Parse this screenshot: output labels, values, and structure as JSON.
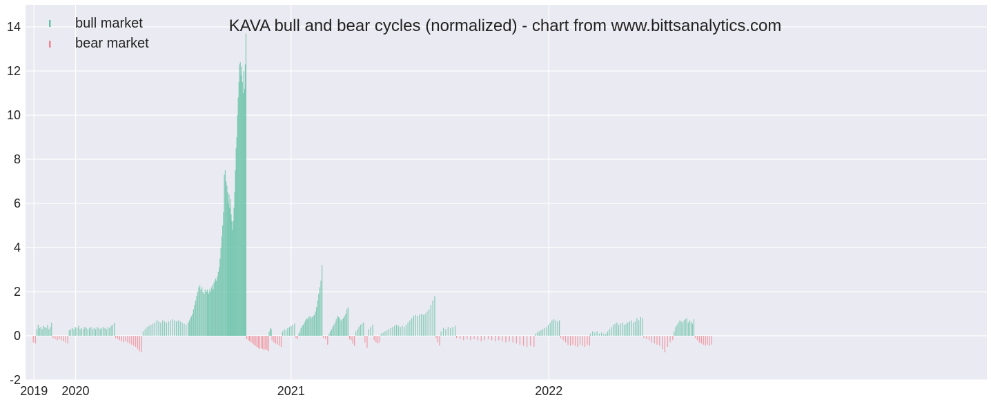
{
  "chart_data": {
    "type": "bar",
    "title": "KAVA bull and bear cycles (normalized)  - chart from www.bittsanalytics.com",
    "xlabel": "",
    "ylabel": "",
    "ylim": [
      -2,
      15
    ],
    "yticks": [
      -2,
      0,
      2,
      4,
      6,
      8,
      10,
      12,
      14
    ],
    "xlim": [
      "2018-12-20",
      "2022-09-15"
    ],
    "xticks": [
      {
        "label": "2019",
        "date": "2019-01-01"
      },
      {
        "label": "2020",
        "date": "2019-03-01"
      },
      {
        "label": "2021",
        "date": "2020-01-01"
      },
      {
        "label": "2022",
        "date": "2021-01-01"
      }
    ],
    "grid": true,
    "legend_position": "top-left",
    "colors": {
      "bull": "#66c2a5",
      "bear": "#f4828c",
      "background": "#eaeaf2",
      "grid": "#ffffff"
    },
    "series": [
      {
        "name": "bull market",
        "key": "bull",
        "segments": [
          {
            "start": "2019-01-05",
            "end": "2019-01-26",
            "values": [
              0.3,
              0.5,
              0.35,
              0.4,
              0.3,
              0.45,
              0.4,
              0.35,
              0.5,
              0.3,
              0.4,
              0.6
            ]
          },
          {
            "start": "2019-02-20",
            "end": "2019-04-25",
            "values": [
              0.25,
              0.3,
              0.35,
              0.3,
              0.4,
              0.35,
              0.45,
              0.3,
              0.35,
              0.3,
              0.4,
              0.35,
              0.3,
              0.35,
              0.4,
              0.3,
              0.35,
              0.3,
              0.4,
              0.35,
              0.3,
              0.35,
              0.4,
              0.35,
              0.3,
              0.4,
              0.35,
              0.45,
              0.5,
              0.6
            ]
          },
          {
            "start": "2019-06-05",
            "end": "2019-08-05",
            "values": [
              0.2,
              0.3,
              0.4,
              0.45,
              0.5,
              0.55,
              0.6,
              0.7,
              0.65,
              0.6,
              0.7,
              0.65,
              0.6,
              0.65,
              0.7,
              0.75,
              0.7,
              0.65,
              0.7,
              0.65,
              0.6,
              0.55,
              0.5
            ]
          },
          {
            "start": "2019-08-08",
            "end": "2019-09-04",
            "values": [
              0.6,
              0.7,
              0.8,
              0.9,
              1.0,
              1.2,
              1.4,
              1.6,
              1.8,
              2.0,
              2.2,
              2.3,
              2.1,
              2.2,
              2.0,
              1.9,
              2.1,
              2.0,
              2.1
            ]
          },
          {
            "start": "2019-09-05",
            "end": "2019-10-02",
            "values": [
              2.0,
              1.9,
              2.1,
              2.0,
              2.2,
              2.3,
              2.1,
              2.4,
              2.5,
              2.6,
              2.5,
              2.7,
              2.9,
              3.1,
              3.5,
              4.0,
              4.5,
              5.0,
              5.6,
              7.3,
              7.5,
              7.0,
              6.8
            ]
          },
          {
            "start": "2019-10-03",
            "end": "2019-10-20",
            "values": [
              6.5,
              6.0,
              6.4,
              5.8,
              6.2,
              5.5,
              5.2,
              4.8,
              5.2,
              5.8,
              6.5,
              7.5,
              8.5,
              9.0,
              10.0,
              10.8,
              11.5,
              12.3
            ]
          },
          {
            "start": "2019-10-21",
            "end": "2019-10-29",
            "values": [
              12.4,
              11.8,
              12.2,
              11.5,
              11.0,
              12.0,
              11.2,
              12.3,
              13.7
            ]
          },
          {
            "start": "2019-12-01",
            "end": "2019-12-04",
            "values": [
              0.2,
              0.35,
              0.3
            ]
          },
          {
            "start": "2019-12-20",
            "end": "2020-01-06",
            "values": [
              0.2,
              0.3,
              0.25,
              0.35,
              0.4,
              0.45,
              0.5,
              0.55
            ]
          },
          {
            "start": "2020-01-12",
            "end": "2020-02-14",
            "values": [
              0.1,
              0.2,
              0.35,
              0.45,
              0.5,
              0.6,
              0.7,
              0.8,
              0.75,
              0.85,
              0.9,
              0.8,
              0.85,
              0.9,
              0.95,
              1.1,
              1.3,
              1.6,
              1.9,
              2.2,
              2.5,
              3.2
            ]
          },
          {
            "start": "2020-02-24",
            "end": "2020-03-22",
            "values": [
              0.1,
              0.2,
              0.3,
              0.4,
              0.5,
              0.6,
              0.75,
              0.9,
              0.85,
              0.8,
              0.7,
              0.75,
              0.8,
              0.9,
              1.0,
              1.2,
              1.3
            ]
          },
          {
            "start": "2020-04-02",
            "end": "2020-04-13",
            "values": [
              0.2,
              0.3,
              0.4,
              0.5,
              0.55,
              0.6
            ]
          },
          {
            "start": "2020-04-20",
            "end": "2020-04-26",
            "values": [
              0.3,
              0.4,
              0.5
            ]
          },
          {
            "start": "2020-05-08",
            "end": "2020-07-23",
            "values": [
              0.1,
              0.15,
              0.2,
              0.25,
              0.3,
              0.35,
              0.4,
              0.45,
              0.5,
              0.45,
              0.4,
              0.45,
              0.4,
              0.5,
              0.6,
              0.7,
              0.8,
              0.9,
              0.95,
              0.9,
              0.95,
              1.0,
              0.95,
              1.0,
              1.1,
              1.2,
              1.4,
              1.6,
              1.8
            ]
          },
          {
            "start": "2020-08-01",
            "end": "2020-08-21",
            "values": [
              0.2,
              0.35,
              0.3,
              0.4,
              0.35,
              0.4,
              0.45
            ]
          },
          {
            "start": "2020-12-13",
            "end": "2021-01-16",
            "values": [
              0.1,
              0.15,
              0.2,
              0.25,
              0.3,
              0.35,
              0.4,
              0.5,
              0.6,
              0.7,
              0.75,
              0.7,
              0.65,
              0.7
            ]
          },
          {
            "start": "2021-03-01",
            "end": "2021-03-20",
            "values": [
              0.1,
              0.2,
              0.15,
              0.2,
              0.1,
              0.15,
              0.1
            ]
          },
          {
            "start": "2021-03-23",
            "end": "2021-05-14",
            "values": [
              0.1,
              0.2,
              0.3,
              0.4,
              0.5,
              0.55,
              0.6,
              0.5,
              0.55,
              0.6,
              0.5,
              0.55,
              0.6,
              0.65,
              0.7,
              0.6,
              0.65,
              0.8,
              0.7,
              0.85,
              0.8
            ]
          },
          {
            "start": "2021-06-28",
            "end": "2021-07-26",
            "values": [
              0.2,
              0.4,
              0.5,
              0.6,
              0.7,
              0.65,
              0.6,
              0.7,
              0.75,
              0.8,
              0.6,
              0.7,
              0.65,
              0.55,
              0.75
            ]
          }
        ]
      },
      {
        "name": "bear market",
        "key": "bear",
        "segments": [
          {
            "start": "2018-12-31",
            "end": "2019-01-03",
            "values": [
              -0.3,
              -0.35
            ]
          },
          {
            "start": "2019-01-28",
            "end": "2019-02-18",
            "values": [
              -0.1,
              -0.15,
              -0.2,
              -0.15,
              -0.2,
              -0.25,
              -0.3,
              -0.35
            ]
          },
          {
            "start": "2019-04-27",
            "end": "2019-06-03",
            "values": [
              -0.1,
              -0.15,
              -0.2,
              -0.25,
              -0.3,
              -0.25,
              -0.3,
              -0.35,
              -0.4,
              -0.45,
              -0.5,
              -0.6,
              -0.7,
              -0.75
            ]
          },
          {
            "start": "2019-10-30",
            "end": "2019-11-30",
            "values": [
              -0.15,
              -0.2,
              -0.25,
              -0.3,
              -0.35,
              -0.4,
              -0.45,
              -0.5,
              -0.55,
              -0.6,
              -0.55,
              -0.6,
              -0.65,
              -0.6,
              -0.65,
              -0.7
            ]
          },
          {
            "start": "2019-12-05",
            "end": "2019-12-18",
            "values": [
              -0.2,
              -0.3,
              -0.35,
              -0.4,
              -0.45,
              -0.5
            ]
          },
          {
            "start": "2020-01-08",
            "end": "2020-01-10",
            "values": [
              -0.1,
              -0.15
            ]
          },
          {
            "start": "2020-02-16",
            "end": "2020-02-22",
            "values": [
              -0.1,
              -0.15,
              -0.4
            ]
          },
          {
            "start": "2020-03-24",
            "end": "2020-03-31",
            "values": [
              -0.15,
              -0.2,
              -0.35,
              -0.45
            ]
          },
          {
            "start": "2020-04-15",
            "end": "2020-04-18",
            "values": [
              -0.3,
              -0.55
            ]
          },
          {
            "start": "2020-04-28",
            "end": "2020-05-06",
            "values": [
              -0.2,
              -0.3,
              -0.35,
              -0.3
            ]
          },
          {
            "start": "2020-07-25",
            "end": "2020-07-30",
            "values": [
              -0.1,
              -0.3,
              -0.45
            ]
          },
          {
            "start": "2020-08-23",
            "end": "2020-12-11",
            "values": [
              -0.1,
              -0.15,
              -0.2,
              -0.15,
              -0.2,
              -0.15,
              -0.2,
              -0.25,
              -0.2,
              -0.15,
              -0.2,
              -0.25,
              -0.2,
              -0.25,
              -0.3,
              -0.25,
              -0.3,
              -0.35,
              -0.4,
              -0.45,
              -0.5,
              -0.45,
              -0.5
            ]
          },
          {
            "start": "2021-01-18",
            "end": "2021-02-28",
            "values": [
              -0.1,
              -0.2,
              -0.3,
              -0.4,
              -0.45,
              -0.4,
              -0.45,
              -0.5,
              -0.4,
              -0.45,
              -0.5,
              -0.4,
              -0.45
            ]
          },
          {
            "start": "2021-05-16",
            "end": "2021-06-26",
            "values": [
              -0.1,
              -0.15,
              -0.2,
              -0.3,
              -0.35,
              -0.4,
              -0.45,
              -0.6,
              -0.75,
              -0.5,
              -0.3,
              -0.2
            ]
          },
          {
            "start": "2021-07-28",
            "end": "2021-08-20",
            "values": [
              -0.1,
              -0.2,
              -0.3,
              -0.35,
              -0.4,
              -0.45,
              -0.4,
              -0.45,
              -0.4
            ]
          }
        ]
      }
    ]
  }
}
